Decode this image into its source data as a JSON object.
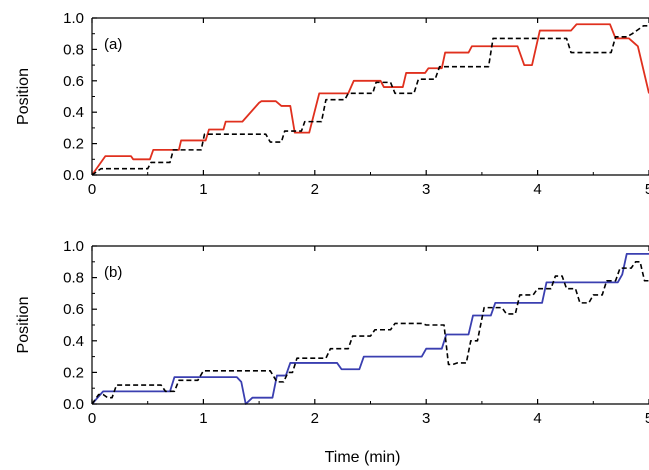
{
  "chart_data": [
    {
      "type": "line",
      "panel_label": "(a)",
      "xlabel": "",
      "ylabel": "Position",
      "xlim": [
        0,
        5
      ],
      "ylim": [
        0,
        1.0
      ],
      "xticks": [
        0,
        1,
        2,
        3,
        4,
        5
      ],
      "yticks": [
        0.0,
        0.2,
        0.4,
        0.6,
        0.8,
        1.0
      ],
      "xtick_labels": [
        "0",
        "1",
        "2",
        "3",
        "4",
        "5"
      ],
      "ytick_labels": [
        "0.0",
        "0.2",
        "0.4",
        "0.6",
        "0.8",
        "1.0"
      ],
      "grid": false,
      "series": [
        {
          "color": "#e0301e",
          "dash": "solid",
          "x": [
            0,
            0.12,
            0.35,
            0.37,
            0.52,
            0.55,
            0.78,
            0.8,
            1.02,
            1.05,
            1.18,
            1.2,
            1.35,
            1.5,
            1.52,
            1.65,
            1.7,
            1.78,
            1.82,
            1.95,
            2.04,
            2.1,
            2.3,
            2.35,
            2.59,
            2.62,
            2.79,
            2.82,
            2.99,
            3.02,
            3.14,
            3.17,
            3.38,
            3.41,
            3.66,
            3.69,
            3.82,
            3.88,
            3.95,
            4.02,
            4.05,
            4.3,
            4.35,
            4.65,
            4.7,
            4.82,
            4.9,
            5.0
          ],
          "y": [
            0.0,
            0.12,
            0.12,
            0.1,
            0.1,
            0.16,
            0.16,
            0.22,
            0.22,
            0.29,
            0.29,
            0.34,
            0.34,
            0.46,
            0.47,
            0.47,
            0.44,
            0.44,
            0.27,
            0.27,
            0.52,
            0.52,
            0.52,
            0.6,
            0.6,
            0.56,
            0.56,
            0.65,
            0.65,
            0.68,
            0.68,
            0.78,
            0.78,
            0.82,
            0.82,
            0.82,
            0.82,
            0.7,
            0.7,
            0.92,
            0.92,
            0.92,
            0.96,
            0.96,
            0.87,
            0.87,
            0.82,
            0.52
          ]
        },
        {
          "color": "#000000",
          "dash": "dashed",
          "x": [
            0,
            0.08,
            0.5,
            0.53,
            0.7,
            0.73,
            0.98,
            1.01,
            1.56,
            1.6,
            1.7,
            1.73,
            1.88,
            1.91,
            2.06,
            2.1,
            2.27,
            2.3,
            2.52,
            2.55,
            2.68,
            2.72,
            2.89,
            2.93,
            3.08,
            3.12,
            3.56,
            3.6,
            3.98,
            4.02,
            4.26,
            4.3,
            4.66,
            4.7,
            4.8,
            4.85,
            4.95,
            5.0
          ],
          "y": [
            0.0,
            0.04,
            0.04,
            0.08,
            0.08,
            0.16,
            0.16,
            0.26,
            0.26,
            0.21,
            0.21,
            0.28,
            0.28,
            0.34,
            0.34,
            0.48,
            0.48,
            0.52,
            0.52,
            0.59,
            0.59,
            0.52,
            0.52,
            0.61,
            0.61,
            0.69,
            0.69,
            0.87,
            0.87,
            0.87,
            0.87,
            0.78,
            0.78,
            0.88,
            0.88,
            0.9,
            0.95,
            0.95
          ]
        }
      ]
    },
    {
      "type": "line",
      "panel_label": "(b)",
      "xlabel": "Time (min)",
      "ylabel": "Position",
      "xlim": [
        0,
        5
      ],
      "ylim": [
        0,
        1.0
      ],
      "xticks": [
        0,
        1,
        2,
        3,
        4,
        5
      ],
      "yticks": [
        0.0,
        0.2,
        0.4,
        0.6,
        0.8,
        1.0
      ],
      "xtick_labels": [
        "0",
        "1",
        "2",
        "3",
        "4",
        "5"
      ],
      "ytick_labels": [
        "0.0",
        "0.2",
        "0.4",
        "0.6",
        "0.8",
        "1.0"
      ],
      "grid": false,
      "series": [
        {
          "color": "#3a3fb0",
          "dash": "solid",
          "x": [
            0,
            0.1,
            0.7,
            0.74,
            1.3,
            1.34,
            1.38,
            1.44,
            1.62,
            1.66,
            1.74,
            1.78,
            2.2,
            2.24,
            2.4,
            2.44,
            2.72,
            2.76,
            2.96,
            3.0,
            3.14,
            3.18,
            3.38,
            3.42,
            3.58,
            3.62,
            4.04,
            4.08,
            4.5,
            4.54,
            4.72,
            4.76,
            4.8,
            5.0
          ],
          "y": [
            0.0,
            0.08,
            0.08,
            0.17,
            0.17,
            0.14,
            0.0,
            0.04,
            0.04,
            0.18,
            0.18,
            0.26,
            0.26,
            0.22,
            0.22,
            0.3,
            0.3,
            0.3,
            0.3,
            0.35,
            0.35,
            0.44,
            0.44,
            0.56,
            0.56,
            0.64,
            0.64,
            0.77,
            0.77,
            0.77,
            0.77,
            0.82,
            0.95,
            0.95
          ]
        },
        {
          "color": "#000000",
          "dash": "dashed",
          "x": [
            0,
            0.06,
            0.1,
            0.14,
            0.18,
            0.22,
            0.62,
            0.66,
            0.74,
            0.78,
            0.95,
            1.0,
            1.6,
            1.66,
            1.72,
            1.76,
            1.8,
            1.84,
            2.1,
            2.14,
            2.3,
            2.34,
            2.5,
            2.54,
            2.68,
            2.72,
            2.96,
            3.0,
            3.16,
            3.2,
            3.24,
            3.28,
            3.36,
            3.4,
            3.46,
            3.52,
            3.68,
            3.72,
            3.8,
            3.84,
            3.96,
            4.0,
            4.12,
            4.16,
            4.22,
            4.26,
            4.34,
            4.38,
            4.46,
            4.5,
            4.58,
            4.62,
            4.7,
            4.74,
            4.84,
            4.88,
            4.92,
            4.96,
            5.0
          ],
          "y": [
            0.0,
            0.06,
            0.06,
            0.04,
            0.04,
            0.12,
            0.12,
            0.08,
            0.08,
            0.15,
            0.15,
            0.21,
            0.21,
            0.14,
            0.14,
            0.2,
            0.2,
            0.29,
            0.29,
            0.35,
            0.35,
            0.43,
            0.43,
            0.47,
            0.47,
            0.51,
            0.51,
            0.5,
            0.5,
            0.25,
            0.25,
            0.26,
            0.26,
            0.4,
            0.4,
            0.61,
            0.61,
            0.57,
            0.57,
            0.69,
            0.69,
            0.73,
            0.73,
            0.81,
            0.81,
            0.73,
            0.73,
            0.64,
            0.64,
            0.69,
            0.69,
            0.78,
            0.78,
            0.86,
            0.86,
            0.9,
            0.9,
            0.78,
            0.78
          ]
        }
      ]
    }
  ]
}
